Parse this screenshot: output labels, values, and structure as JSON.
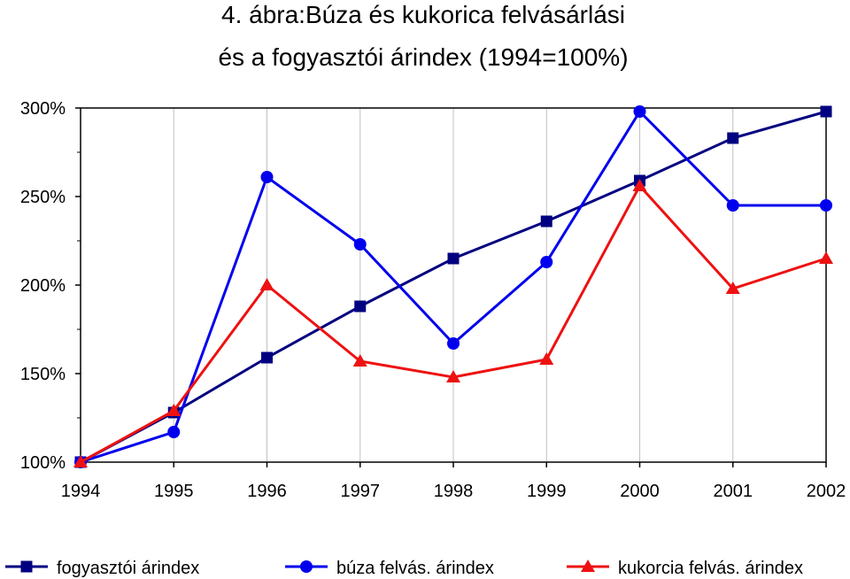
{
  "chart_data": {
    "type": "line",
    "title_lines": [
      "4. ábra:Búza és kukorica felvásárlási",
      "és a fogyasztói árindex (1994=100%)"
    ],
    "x": [
      "1994",
      "1995",
      "1996",
      "1997",
      "1998",
      "1999",
      "2000",
      "2001",
      "2002"
    ],
    "y_ticks": [
      "100%",
      "150%",
      "200%",
      "250%",
      "300%"
    ],
    "ylim": [
      100,
      300
    ],
    "grid": "vertical",
    "legend_position": "bottom",
    "series": [
      {
        "name": "fogyasztói árindex",
        "color": "#000080",
        "marker": "square",
        "values": [
          100,
          128,
          159,
          188,
          215,
          236,
          259,
          283,
          298
        ]
      },
      {
        "name": "búza felvás. árindex",
        "color": "#0000ee",
        "marker": "circle",
        "values": [
          100,
          117,
          261,
          223,
          167,
          213,
          298,
          245,
          245
        ]
      },
      {
        "name": "kukorcia felvás. árindex",
        "color": "#ee1111",
        "marker": "triangle",
        "values": [
          100,
          129,
          200,
          157,
          148,
          158,
          256,
          198,
          215
        ]
      }
    ]
  }
}
